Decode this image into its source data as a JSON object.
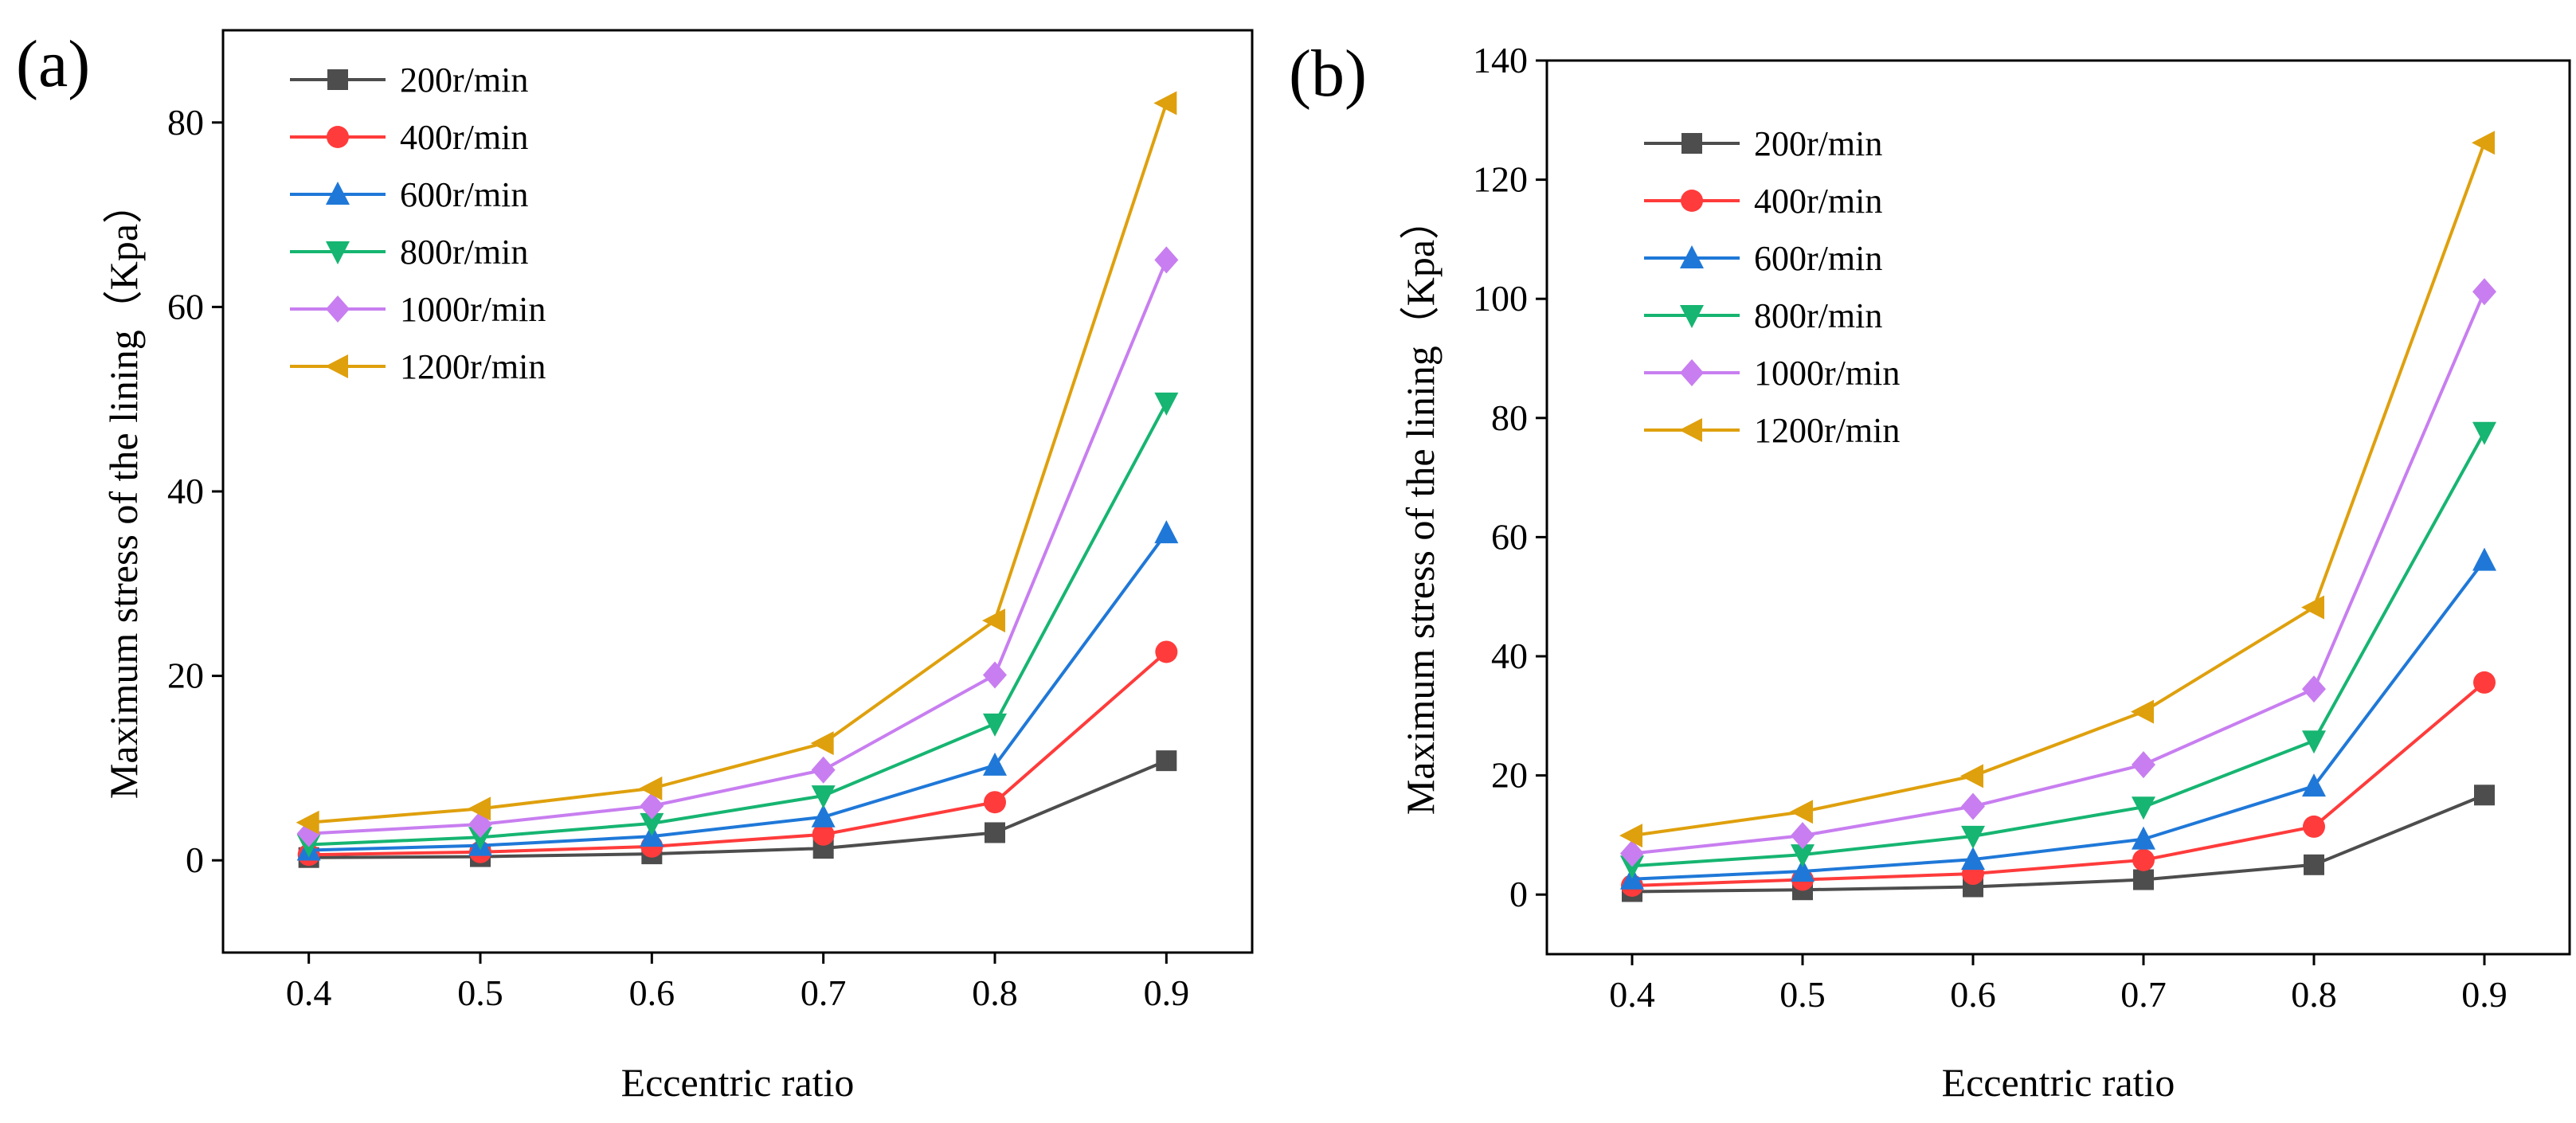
{
  "chart_data": [
    {
      "panel_label": "(a)",
      "type": "line",
      "xlabel": "Eccentric ratio",
      "ylabel": "Maximum stress of the lining（Kpa）",
      "x": [
        0.4,
        0.5,
        0.6,
        0.7,
        0.8,
        0.9
      ],
      "x_tick_labels": [
        "0.4",
        "0.5",
        "0.6",
        "0.7",
        "0.8",
        "0.9"
      ],
      "xlim": [
        0.35,
        0.95
      ],
      "ylim": [
        -10,
        90
      ],
      "y_ticks": [
        0,
        20,
        40,
        60,
        80
      ],
      "y_tick_labels": [
        "0",
        "20",
        "40",
        "60",
        "80"
      ],
      "legend_position": "top-left",
      "series": [
        {
          "name": "200r/min",
          "marker": "square",
          "color": "#4d4d4d",
          "values": [
            0.3,
            0.4,
            0.7,
            1.3,
            3.0,
            10.8
          ]
        },
        {
          "name": "400r/min",
          "marker": "circle",
          "color": "#ff3b3b",
          "values": [
            0.6,
            0.9,
            1.5,
            2.8,
            6.3,
            22.6
          ]
        },
        {
          "name": "600r/min",
          "marker": "triangle-up",
          "color": "#1f78d8",
          "values": [
            1.1,
            1.6,
            2.6,
            4.7,
            10.3,
            35.5
          ]
        },
        {
          "name": "800r/min",
          "marker": "triangle-down",
          "color": "#16b571",
          "values": [
            1.7,
            2.5,
            4.0,
            7.0,
            14.8,
            49.6
          ]
        },
        {
          "name": "1000r/min",
          "marker": "diamond",
          "color": "#c87ef0",
          "values": [
            2.9,
            3.9,
            5.9,
            9.8,
            20.1,
            65.1
          ]
        },
        {
          "name": "1200r/min",
          "marker": "triangle-left",
          "color": "#dfa00d",
          "values": [
            4.1,
            5.6,
            7.8,
            12.7,
            26.0,
            82.1
          ]
        }
      ]
    },
    {
      "panel_label": "(b)",
      "type": "line",
      "xlabel": "Eccentric ratio",
      "ylabel": "Maximum stress of the lining（Kpa）",
      "x": [
        0.4,
        0.5,
        0.6,
        0.7,
        0.8,
        0.9
      ],
      "x_tick_labels": [
        "0.4",
        "0.5",
        "0.6",
        "0.7",
        "0.8",
        "0.9"
      ],
      "xlim": [
        0.35,
        0.95
      ],
      "ylim": [
        -10,
        140
      ],
      "y_ticks": [
        0,
        20,
        40,
        60,
        80,
        100,
        120,
        140
      ],
      "y_tick_labels": [
        "0",
        "20",
        "40",
        "60",
        "80",
        "100",
        "120",
        "140"
      ],
      "legend_position": "top-left",
      "series": [
        {
          "name": "200r/min",
          "marker": "square",
          "color": "#4d4d4d",
          "values": [
            0.5,
            0.8,
            1.3,
            2.5,
            5.0,
            16.7
          ]
        },
        {
          "name": "400r/min",
          "marker": "circle",
          "color": "#ff3b3b",
          "values": [
            1.5,
            2.5,
            3.5,
            5.8,
            11.4,
            35.6
          ]
        },
        {
          "name": "600r/min",
          "marker": "triangle-up",
          "color": "#1f78d8",
          "values": [
            2.6,
            3.9,
            5.9,
            9.3,
            18.2,
            56.1
          ]
        },
        {
          "name": "800r/min",
          "marker": "triangle-down",
          "color": "#16b571",
          "values": [
            4.8,
            6.7,
            9.8,
            14.7,
            25.8,
            77.6
          ]
        },
        {
          "name": "1000r/min",
          "marker": "diamond",
          "color": "#c87ef0",
          "values": [
            6.9,
            9.9,
            14.8,
            21.8,
            34.5,
            101.2
          ]
        },
        {
          "name": "1200r/min",
          "marker": "triangle-left",
          "color": "#dfa00d",
          "values": [
            9.9,
            13.9,
            19.9,
            30.7,
            48.2,
            126.2
          ]
        }
      ]
    }
  ]
}
